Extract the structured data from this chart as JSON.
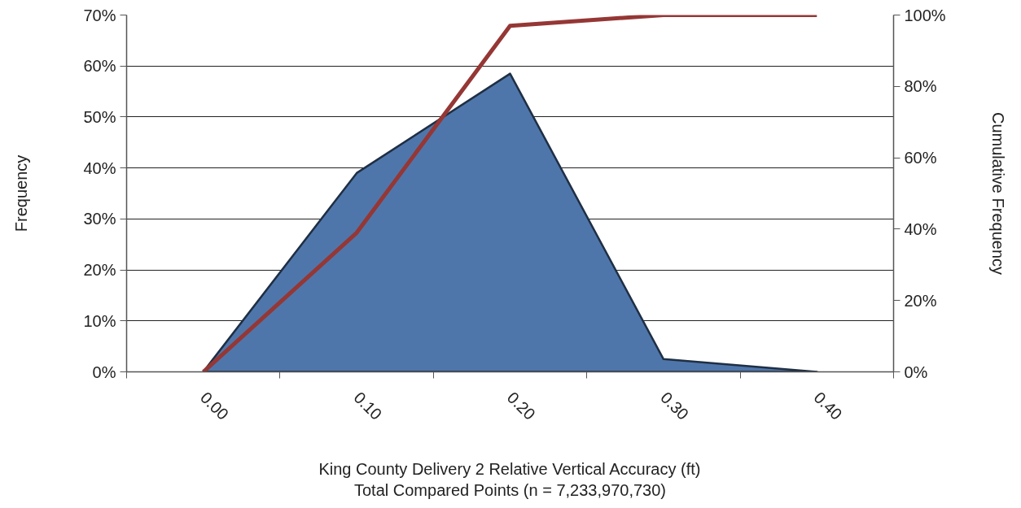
{
  "chart_data": {
    "type": "area",
    "xlabel": "King County Delivery 2 Relative Vertical Accuracy (ft)\nTotal Compared Points (n = 7,233,970,730)",
    "ylabel": "Frequency",
    "y2label": "Cumulative Frequency",
    "categories": [
      "0.00",
      "0.10",
      "0.20",
      "0.30",
      "0.40"
    ],
    "series": [
      {
        "color": "#4f76ab",
        "values": [
          0,
          39,
          58.5,
          2.5,
          0
        ]
      },
      {
        "type": "line",
        "axis": "y2",
        "color": "#953735",
        "values": [
          0,
          39,
          97,
          100,
          100
        ]
      }
    ],
    "ylim": [
      0,
      70
    ],
    "yticks": [
      {
        "value": 0,
        "label": "0%"
      },
      {
        "value": 10,
        "label": "10%"
      },
      {
        "value": 20,
        "label": "20%"
      },
      {
        "value": 30,
        "label": "30%"
      },
      {
        "value": 40,
        "label": "40%"
      },
      {
        "value": 50,
        "label": "50%"
      },
      {
        "value": 60,
        "label": "60%"
      },
      {
        "value": 70,
        "label": "70%"
      }
    ],
    "y2lim": [
      0,
      100
    ],
    "y2ticks": [
      {
        "value": 0,
        "label": "0%"
      },
      {
        "value": 20,
        "label": "20%"
      },
      {
        "value": 40,
        "label": "40%"
      },
      {
        "value": 60,
        "label": "60%"
      },
      {
        "value": 80,
        "label": "80%"
      },
      {
        "value": 100,
        "label": "100%"
      }
    ],
    "grid": "y"
  }
}
